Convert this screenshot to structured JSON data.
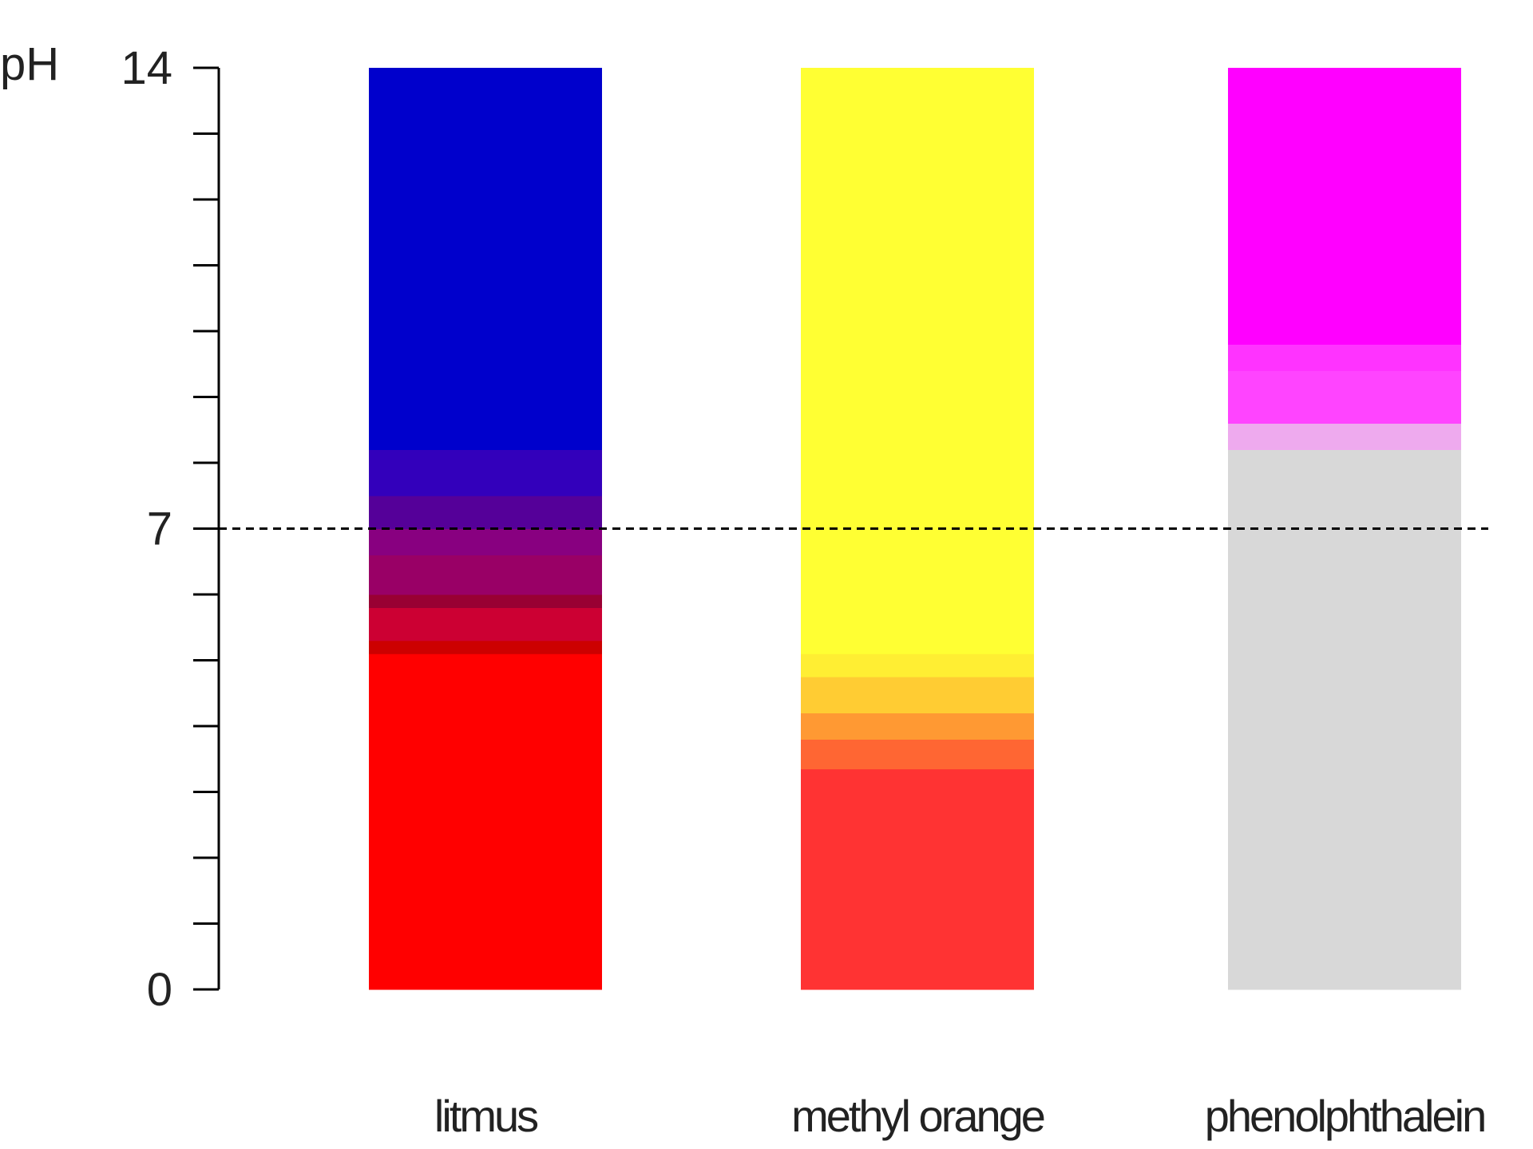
{
  "chart_data": {
    "type": "bar",
    "ylabel": "pH",
    "ylim": [
      0,
      14
    ],
    "y_tick_labels": [
      "0",
      "7",
      "14"
    ],
    "minor_ticks_every": 1,
    "reference_line": {
      "value": 7,
      "style": "dashed",
      "color": "#000000"
    },
    "categories": [
      "litmus",
      "methyl orange",
      "phenolphthalein"
    ],
    "indicators": [
      {
        "name": "litmus",
        "bands": [
          {
            "from": 0,
            "to": 5.1,
            "color": "#ff0000"
          },
          {
            "from": 5.1,
            "to": 5.3,
            "color": "#cc0000"
          },
          {
            "from": 5.3,
            "to": 5.8,
            "color": "#cc0033"
          },
          {
            "from": 5.8,
            "to": 6.0,
            "color": "#990033"
          },
          {
            "from": 6.0,
            "to": 6.6,
            "color": "#990066"
          },
          {
            "from": 6.6,
            "to": 7.0,
            "color": "#880080"
          },
          {
            "from": 7.0,
            "to": 7.5,
            "color": "#550099"
          },
          {
            "from": 7.5,
            "to": 8.2,
            "color": "#3300bb"
          },
          {
            "from": 8.2,
            "to": 14,
            "color": "#0000cc"
          }
        ]
      },
      {
        "name": "methyl orange",
        "bands": [
          {
            "from": 0,
            "to": 3.35,
            "color": "#ff3333"
          },
          {
            "from": 3.35,
            "to": 3.8,
            "color": "#ff6633"
          },
          {
            "from": 3.8,
            "to": 4.2,
            "color": "#ff9933"
          },
          {
            "from": 4.2,
            "to": 4.75,
            "color": "#ffcc33"
          },
          {
            "from": 4.75,
            "to": 5.1,
            "color": "#ffee33"
          },
          {
            "from": 5.1,
            "to": 14,
            "color": "#ffff33"
          }
        ]
      },
      {
        "name": "phenolphthalein",
        "bands": [
          {
            "from": 0,
            "to": 8.2,
            "color": "#d8d8d8"
          },
          {
            "from": 8.2,
            "to": 8.6,
            "color": "#eeaaee"
          },
          {
            "from": 8.6,
            "to": 9.4,
            "color": "#ff44ff"
          },
          {
            "from": 9.4,
            "to": 9.8,
            "color": "#ff33ff"
          },
          {
            "from": 9.8,
            "to": 14,
            "color": "#ff00ff"
          }
        ]
      }
    ]
  }
}
